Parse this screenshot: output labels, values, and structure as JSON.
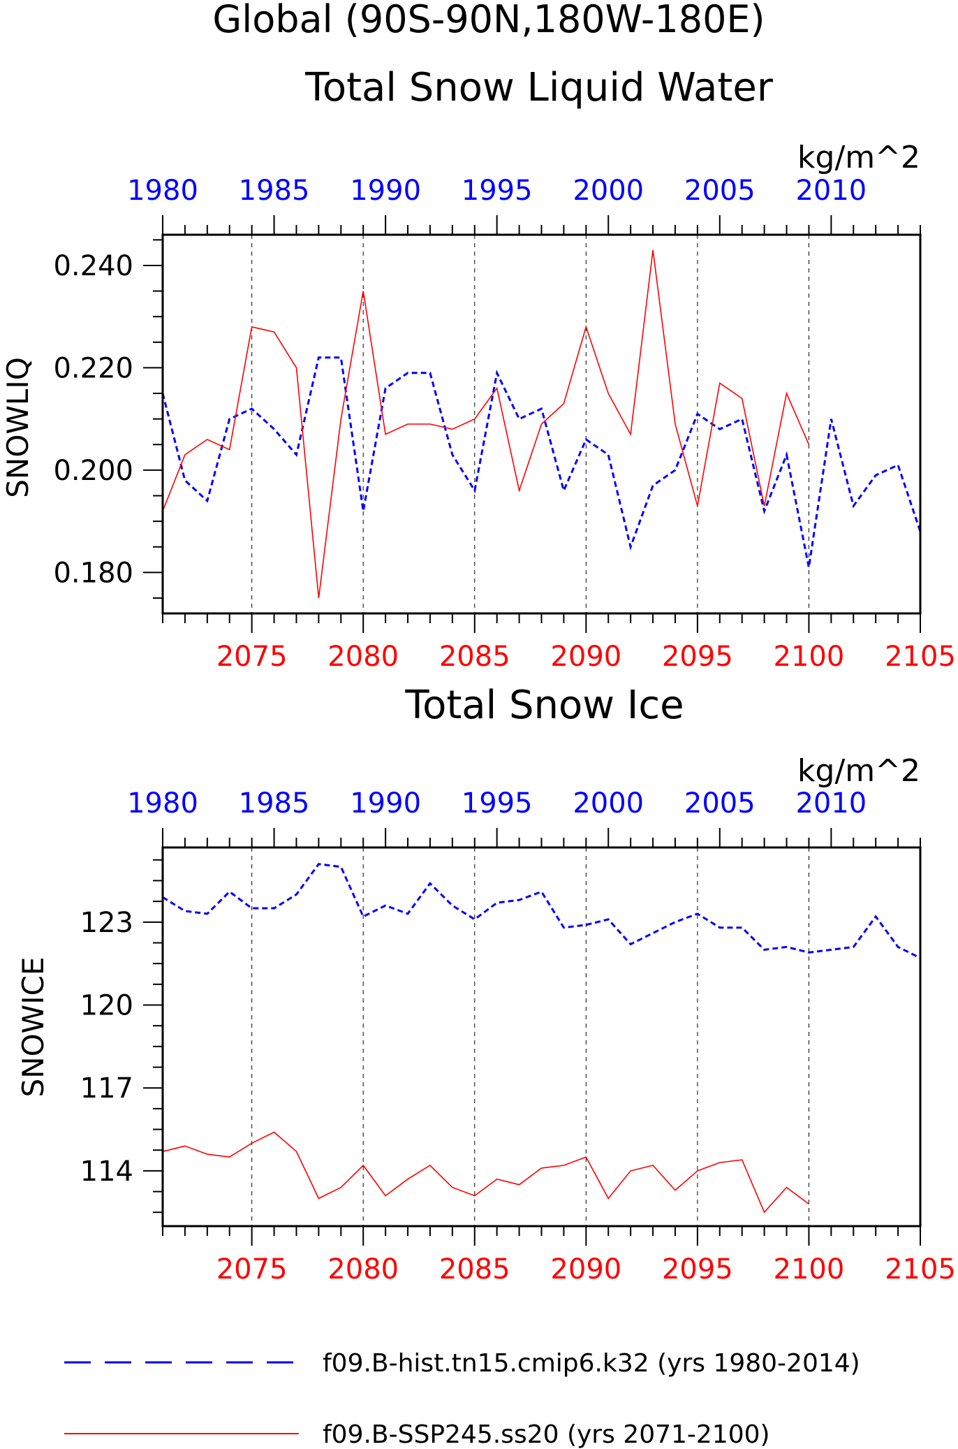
{
  "figure": {
    "title_line1": "Global (90S-90N,180W-180E)",
    "colors": {
      "hist": "#0000ff",
      "ssp": "#ff0000",
      "axis": "#000000"
    }
  },
  "legend": [
    {
      "label": "f09.B-hist.tn15.cmip6.k32 (yrs 1980-2014)",
      "color": "#0000ff",
      "style": "dashed"
    },
    {
      "label": "f09.B-SSP245.ss20 (yrs 2071-2100)",
      "color": "#ff0000",
      "style": "solid"
    }
  ],
  "chart_data": [
    {
      "type": "line",
      "title": "Total Snow Liquid Water",
      "units": "kg/m^2",
      "ylabel": "SNOWLIQ",
      "ylim": [
        0.172,
        0.246
      ],
      "yticks": [
        0.18,
        0.2,
        0.22,
        0.24
      ],
      "ytick_labels": [
        "0.180",
        "0.200",
        "0.220",
        "0.240"
      ],
      "bottom_axis": {
        "range": [
          2071,
          2105
        ],
        "ticks": [
          2075,
          2080,
          2085,
          2090,
          2095,
          2100,
          2105
        ]
      },
      "top_axis": {
        "range": [
          1980,
          2014
        ],
        "ticks": [
          1980,
          1985,
          1990,
          1995,
          2000,
          2005,
          2010
        ]
      },
      "gridlines_x": [
        2075,
        2080,
        2085,
        2090,
        2095,
        2100
      ],
      "series": [
        {
          "name": "f09.B-hist.tn15.cmip6.k32 (yrs 1980-2014)",
          "style": "dashed",
          "color": "#0000ff",
          "axis": "top",
          "x": [
            1980,
            1981,
            1982,
            1983,
            1984,
            1985,
            1986,
            1987,
            1988,
            1989,
            1990,
            1991,
            1992,
            1993,
            1994,
            1995,
            1996,
            1997,
            1998,
            1999,
            2000,
            2001,
            2002,
            2003,
            2004,
            2005,
            2006,
            2007,
            2008,
            2009,
            2010,
            2011,
            2012,
            2013,
            2014
          ],
          "values": [
            0.215,
            0.198,
            0.194,
            0.21,
            0.212,
            0.208,
            0.203,
            0.222,
            0.222,
            0.192,
            0.216,
            0.219,
            0.219,
            0.203,
            0.196,
            0.219,
            0.21,
            0.212,
            0.196,
            0.206,
            0.203,
            0.185,
            0.197,
            0.2,
            0.211,
            0.208,
            0.21,
            0.192,
            0.203,
            0.181,
            0.21,
            0.193,
            0.199,
            0.201,
            0.188
          ]
        },
        {
          "name": "f09.B-SSP245.ss20 (yrs 2071-2100)",
          "style": "solid",
          "color": "#ff0000",
          "axis": "bottom",
          "x": [
            2071,
            2072,
            2073,
            2074,
            2075,
            2076,
            2077,
            2078,
            2079,
            2080,
            2081,
            2082,
            2083,
            2084,
            2085,
            2086,
            2087,
            2088,
            2089,
            2090,
            2091,
            2092,
            2093,
            2094,
            2095,
            2096,
            2097,
            2098,
            2099,
            2100
          ],
          "values": [
            0.192,
            0.203,
            0.206,
            0.204,
            0.228,
            0.227,
            0.22,
            0.175,
            0.21,
            0.235,
            0.207,
            0.209,
            0.209,
            0.208,
            0.21,
            0.216,
            0.196,
            0.209,
            0.213,
            0.228,
            0.215,
            0.207,
            0.243,
            0.209,
            0.193,
            0.217,
            0.214,
            0.193,
            0.215,
            0.205
          ]
        }
      ]
    },
    {
      "type": "line",
      "title": "Total Snow Ice",
      "units": "kg/m^2",
      "ylabel": "SNOWICE",
      "ylim": [
        112.0,
        125.7
      ],
      "yticks": [
        114,
        117,
        120,
        123
      ],
      "ytick_labels": [
        "114",
        "117",
        "120",
        "123"
      ],
      "bottom_axis": {
        "range": [
          2071,
          2105
        ],
        "ticks": [
          2075,
          2080,
          2085,
          2090,
          2095,
          2100,
          2105
        ]
      },
      "top_axis": {
        "range": [
          1980,
          2014
        ],
        "ticks": [
          1980,
          1985,
          1990,
          1995,
          2000,
          2005,
          2010
        ]
      },
      "gridlines_x": [
        2075,
        2080,
        2085,
        2090,
        2095,
        2100
      ],
      "series": [
        {
          "name": "f09.B-hist.tn15.cmip6.k32 (yrs 1980-2014)",
          "style": "dashed",
          "color": "#0000ff",
          "axis": "top",
          "x": [
            1980,
            1981,
            1982,
            1983,
            1984,
            1985,
            1986,
            1987,
            1988,
            1989,
            1990,
            1991,
            1992,
            1993,
            1994,
            1995,
            1996,
            1997,
            1998,
            1999,
            2000,
            2001,
            2002,
            2003,
            2004,
            2005,
            2006,
            2007,
            2008,
            2009,
            2010,
            2011,
            2012,
            2013,
            2014
          ],
          "values": [
            123.9,
            123.4,
            123.3,
            124.1,
            123.5,
            123.5,
            124.0,
            125.1,
            125.0,
            123.2,
            123.6,
            123.3,
            124.4,
            123.6,
            123.1,
            123.7,
            123.8,
            124.1,
            122.8,
            122.9,
            123.1,
            122.2,
            122.6,
            123.0,
            123.3,
            122.8,
            122.8,
            122.0,
            122.1,
            121.9,
            122.0,
            122.1,
            123.2,
            122.1,
            121.7
          ]
        },
        {
          "name": "f09.B-SSP245.ss20 (yrs 2071-2100)",
          "style": "solid",
          "color": "#ff0000",
          "axis": "bottom",
          "x": [
            2071,
            2072,
            2073,
            2074,
            2075,
            2076,
            2077,
            2078,
            2079,
            2080,
            2081,
            2082,
            2083,
            2084,
            2085,
            2086,
            2087,
            2088,
            2089,
            2090,
            2091,
            2092,
            2093,
            2094,
            2095,
            2096,
            2097,
            2098,
            2099,
            2100
          ],
          "values": [
            114.7,
            114.9,
            114.6,
            114.5,
            115.0,
            115.4,
            114.7,
            113.0,
            113.4,
            114.2,
            113.1,
            113.7,
            114.2,
            113.4,
            113.1,
            113.7,
            113.5,
            114.1,
            114.2,
            114.5,
            113.0,
            114.0,
            114.2,
            113.3,
            114.0,
            114.3,
            114.4,
            112.5,
            113.4,
            112.8
          ]
        }
      ]
    }
  ]
}
